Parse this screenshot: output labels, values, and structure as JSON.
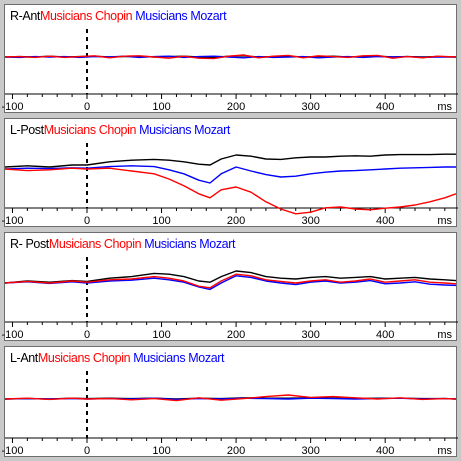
{
  "chart_data": [
    {
      "type": "line",
      "title": "R-Ant",
      "x_ticks": [
        -100,
        0,
        100,
        200,
        300,
        400
      ],
      "x_unit_label": "ms",
      "xlim": [
        -110,
        495
      ],
      "ylim": [
        -1,
        1
      ],
      "grid": false,
      "series": [
        {
          "name": "Musicians Chopin",
          "color": "#ff0000",
          "x": [
            -110,
            -90,
            -70,
            -50,
            -30,
            -10,
            10,
            30,
            50,
            70,
            90,
            110,
            130,
            150,
            170,
            190,
            210,
            230,
            250,
            270,
            290,
            310,
            330,
            350,
            370,
            390,
            410,
            430,
            450,
            470,
            495
          ],
          "values": [
            0,
            0.01,
            -0.01,
            0.02,
            -0.01,
            0.01,
            0.03,
            -0.02,
            0.02,
            0.03,
            0,
            -0.03,
            0.02,
            -0.03,
            -0.04,
            0.02,
            0.05,
            -0.02,
            0.02,
            0.04,
            -0.02,
            0.03,
            0.01,
            -0.01,
            0.03,
            0.04,
            -0.03,
            0.01,
            -0.02,
            0.02,
            0
          ]
        },
        {
          "name": "Musicians Mozart",
          "color": "#0000ff",
          "x": [
            -110,
            -90,
            -70,
            -50,
            -30,
            -10,
            10,
            30,
            50,
            70,
            90,
            110,
            130,
            150,
            170,
            190,
            210,
            230,
            250,
            270,
            290,
            310,
            330,
            350,
            370,
            390,
            410,
            430,
            450,
            470,
            495
          ],
          "values": [
            0,
            -0.01,
            0.01,
            0,
            0.01,
            -0.01,
            0.01,
            0,
            0.02,
            -0.01,
            0.01,
            0.02,
            -0.01,
            0.01,
            0.02,
            0,
            -0.02,
            0.01,
            -0.01,
            0,
            0.01,
            -0.02,
            0,
            0.01,
            -0.01,
            0.01,
            0,
            0.01,
            -0.01,
            0,
            0
          ]
        },
        {
          "name": "",
          "color": "#000000",
          "x": [
            -110,
            -90,
            -70,
            -50,
            -30,
            -10,
            10,
            30,
            50,
            70,
            90,
            110,
            130,
            150,
            170,
            190,
            210,
            230,
            250,
            270,
            290,
            310,
            330,
            350,
            370,
            390,
            410,
            430,
            450,
            470,
            495
          ],
          "values": [
            0,
            0.01,
            0,
            0.02,
            0,
            0.01,
            0.02,
            0,
            0.01,
            0.02,
            0,
            0.01,
            0.02,
            0,
            -0.01,
            0.02,
            0.03,
            0,
            0.01,
            0.02,
            0,
            0.01,
            0.02,
            0,
            0.01,
            0.02,
            0,
            0.01,
            0,
            0.01,
            0
          ]
        }
      ]
    },
    {
      "type": "line",
      "title": "L-Post",
      "x_ticks": [
        -100,
        0,
        100,
        200,
        300,
        400
      ],
      "x_unit_label": "ms",
      "xlim": [
        -110,
        495
      ],
      "ylim": [
        -1,
        1
      ],
      "grid": false,
      "series": [
        {
          "name": "Musicians Chopin",
          "color": "#ff0000",
          "x": [
            -110,
            -80,
            -50,
            -20,
            0,
            30,
            60,
            90,
            110,
            130,
            150,
            165,
            180,
            200,
            220,
            240,
            260,
            280,
            300,
            320,
            340,
            360,
            380,
            400,
            420,
            440,
            460,
            480,
            495
          ],
          "values": [
            0,
            -0.04,
            -0.02,
            0.02,
            0,
            0.02,
            -0.05,
            -0.12,
            -0.25,
            -0.42,
            -0.62,
            -0.72,
            -0.52,
            -0.45,
            -0.58,
            -0.82,
            -1.0,
            -1.12,
            -1.08,
            -0.97,
            -0.95,
            -1.0,
            -1.02,
            -0.98,
            -0.95,
            -0.9,
            -0.82,
            -0.72,
            -0.62
          ]
        },
        {
          "name": "Musicians Mozart",
          "color": "#0000ff",
          "x": [
            -110,
            -80,
            -50,
            -20,
            0,
            30,
            60,
            90,
            110,
            130,
            150,
            165,
            180,
            200,
            220,
            240,
            260,
            280,
            300,
            320,
            340,
            360,
            380,
            400,
            420,
            440,
            460,
            480,
            495
          ],
          "values": [
            0,
            0.02,
            0.01,
            0.03,
            0.02,
            0.06,
            0.08,
            0.06,
            -0.02,
            -0.12,
            -0.28,
            -0.35,
            -0.12,
            0.05,
            -0.05,
            -0.14,
            -0.2,
            -0.18,
            -0.12,
            -0.08,
            -0.05,
            -0.04,
            -0.02,
            0,
            0.02,
            0.03,
            0.04,
            0.05,
            0.05
          ]
        },
        {
          "name": "",
          "color": "#000000",
          "x": [
            -110,
            -80,
            -50,
            -20,
            0,
            30,
            60,
            90,
            110,
            130,
            150,
            165,
            180,
            200,
            220,
            240,
            260,
            280,
            300,
            320,
            340,
            360,
            380,
            400,
            420,
            440,
            460,
            480,
            495
          ],
          "values": [
            0.05,
            0.08,
            0.05,
            0.1,
            0.1,
            0.18,
            0.22,
            0.24,
            0.22,
            0.18,
            0.12,
            0.1,
            0.25,
            0.35,
            0.32,
            0.25,
            0.24,
            0.28,
            0.3,
            0.3,
            0.32,
            0.33,
            0.32,
            0.35,
            0.36,
            0.36,
            0.36,
            0.37,
            0.37
          ]
        }
      ]
    },
    {
      "type": "line",
      "title": "R- Post",
      "x_ticks": [
        -100,
        0,
        100,
        200,
        300,
        400
      ],
      "x_unit_label": "ms",
      "xlim": [
        -110,
        495
      ],
      "ylim": [
        -1,
        1
      ],
      "grid": false,
      "series": [
        {
          "name": "Musicians Chopin",
          "color": "#ff0000",
          "x": [
            -110,
            -80,
            -50,
            -20,
            0,
            30,
            60,
            90,
            110,
            130,
            150,
            165,
            180,
            200,
            220,
            240,
            260,
            280,
            300,
            320,
            340,
            360,
            380,
            400,
            420,
            440,
            460,
            480,
            495
          ],
          "values": [
            0,
            0.04,
            0,
            0.05,
            0.02,
            0.08,
            0.1,
            0.16,
            0.12,
            0.05,
            -0.08,
            -0.12,
            0.05,
            0.22,
            0.18,
            0.08,
            0.04,
            0,
            0.05,
            0.08,
            0.02,
            0.05,
            0.1,
            0.02,
            0.05,
            0.08,
            0.02,
            0,
            -0.02
          ]
        },
        {
          "name": "Musicians Mozart",
          "color": "#0000ff",
          "x": [
            -110,
            -80,
            -50,
            -20,
            0,
            30,
            60,
            90,
            110,
            130,
            150,
            165,
            180,
            200,
            220,
            240,
            260,
            280,
            300,
            320,
            340,
            360,
            380,
            400,
            420,
            440,
            460,
            480,
            495
          ],
          "values": [
            0,
            0.03,
            -0.01,
            0.03,
            0,
            0.05,
            0.07,
            0.12,
            0.08,
            0.02,
            -0.1,
            -0.16,
            0,
            0.18,
            0.14,
            0.05,
            0,
            -0.04,
            0.02,
            0.05,
            0,
            0.02,
            0.06,
            -0.02,
            0,
            0.03,
            -0.03,
            -0.05,
            -0.06
          ]
        },
        {
          "name": "",
          "color": "#000000",
          "x": [
            -110,
            -80,
            -50,
            -20,
            0,
            30,
            60,
            90,
            110,
            130,
            150,
            165,
            180,
            200,
            220,
            240,
            260,
            280,
            300,
            320,
            340,
            360,
            380,
            400,
            420,
            440,
            460,
            480,
            495
          ],
          "values": [
            0,
            0.05,
            0.02,
            0.06,
            0.04,
            0.12,
            0.16,
            0.24,
            0.22,
            0.16,
            0.05,
            0.02,
            0.16,
            0.3,
            0.26,
            0.16,
            0.12,
            0.1,
            0.14,
            0.16,
            0.12,
            0.14,
            0.16,
            0.1,
            0.12,
            0.14,
            0.1,
            0.08,
            0.06
          ]
        }
      ]
    },
    {
      "type": "line",
      "title": "L-Ant",
      "x_ticks": [
        -100,
        0,
        100,
        200,
        300,
        400
      ],
      "x_unit_label": "ms",
      "xlim": [
        -110,
        495
      ],
      "ylim": [
        -1,
        1
      ],
      "grid": false,
      "series": [
        {
          "name": "Musicians Chopin",
          "color": "#ff0000",
          "x": [
            -110,
            -80,
            -50,
            -20,
            0,
            30,
            60,
            90,
            120,
            150,
            180,
            210,
            240,
            270,
            300,
            330,
            360,
            390,
            420,
            450,
            480,
            495
          ],
          "values": [
            0,
            0.02,
            -0.01,
            0.02,
            0,
            0.01,
            -0.02,
            0.01,
            -0.04,
            0.03,
            -0.03,
            0.01,
            0.06,
            0.1,
            0.04,
            0.06,
            0.03,
            0,
            0.03,
            -0.01,
            0.01,
            0
          ]
        },
        {
          "name": "Musicians Mozart",
          "color": "#0000ff",
          "x": [
            -110,
            -80,
            -50,
            -20,
            0,
            30,
            60,
            90,
            120,
            150,
            180,
            210,
            240,
            270,
            300,
            330,
            360,
            390,
            420,
            450,
            480,
            495
          ],
          "values": [
            0,
            0.01,
            0,
            0.01,
            0,
            0.01,
            0,
            0.02,
            -0.01,
            0.01,
            0,
            0.02,
            0.01,
            0,
            0.02,
            0.01,
            0,
            0.01,
            0.02,
            0,
            0.01,
            0
          ]
        },
        {
          "name": "",
          "color": "#000000",
          "x": [
            -110,
            -80,
            -50,
            -20,
            0,
            30,
            60,
            90,
            120,
            150,
            180,
            210,
            240,
            270,
            300,
            330,
            360,
            390,
            420,
            450,
            480,
            495
          ],
          "values": [
            0,
            0.01,
            0,
            0.02,
            0.01,
            0.02,
            0.01,
            0.02,
            0,
            0.02,
            0.01,
            0.03,
            0.02,
            0.02,
            0.03,
            0.02,
            0.01,
            0.02,
            0.02,
            0.01,
            0.01,
            0
          ]
        }
      ]
    }
  ]
}
